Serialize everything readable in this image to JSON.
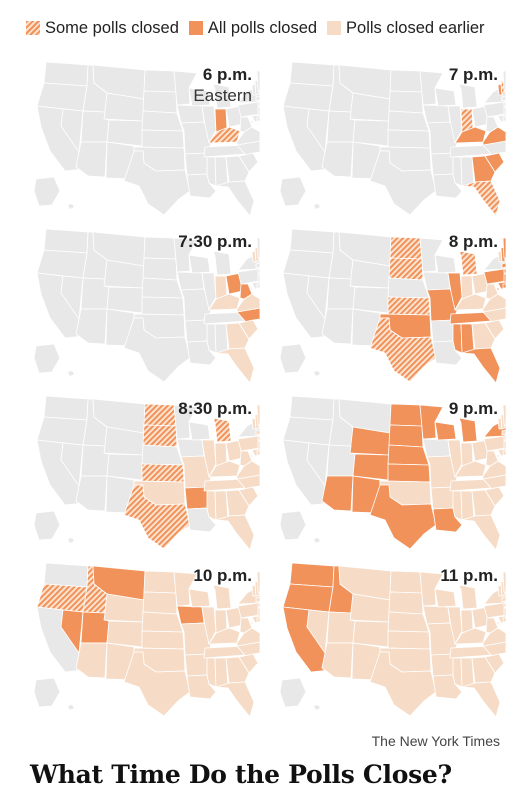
{
  "legend": {
    "some_polls_closed": "Some polls closed",
    "all_polls_closed": "All polls closed",
    "polls_closed_earlier": "Polls closed earlier"
  },
  "colors": {
    "all_polls_closed": "#f1925a",
    "some_polls_closed_hatch": "#f1925a",
    "polls_closed_earlier": "#f6dcc6",
    "open": "#e8e8e8",
    "border": "#ffffff"
  },
  "panels": [
    {
      "time": "6 p.m.",
      "subtitle": "Eastern",
      "all": [
        "IN"
      ],
      "some": [
        "IN",
        "KY"
      ],
      "earlier": []
    },
    {
      "time": "7 p.m.",
      "subtitle": "",
      "all": [
        "KY",
        "VA",
        "GA",
        "SC",
        "VT"
      ],
      "some": [
        "FL",
        "NH",
        "IN"
      ],
      "earlier": [
        "IN"
      ]
    },
    {
      "time": "7:30 p.m.",
      "subtitle": "",
      "all": [
        "OH",
        "WV",
        "NC"
      ],
      "some": [],
      "earlier": [
        "IN",
        "KY",
        "VA",
        "GA",
        "SC",
        "VT",
        "FL",
        "NH"
      ]
    },
    {
      "time": "8 p.m.",
      "subtitle": "",
      "all": [
        "IL",
        "MS",
        "AL",
        "TN",
        "FL",
        "MO",
        "ME",
        "MA",
        "CT",
        "RI",
        "NJ",
        "DE",
        "MD",
        "DC",
        "PA",
        "NH",
        "OK"
      ],
      "some": [
        "ND",
        "SD",
        "KS",
        "TX",
        "MI"
      ],
      "earlier": [
        "IN",
        "KY",
        "VA",
        "GA",
        "SC",
        "VT",
        "OH",
        "WV",
        "NC"
      ]
    },
    {
      "time": "8:30 p.m.",
      "subtitle": "",
      "all": [
        "AR"
      ],
      "some": [
        "ND",
        "SD",
        "KS",
        "TX",
        "MI"
      ],
      "earlier": [
        "IL",
        "MS",
        "AL",
        "TN",
        "FL",
        "MO",
        "ME",
        "MA",
        "CT",
        "RI",
        "NJ",
        "DE",
        "MD",
        "DC",
        "PA",
        "NH",
        "OK",
        "IN",
        "KY",
        "VA",
        "GA",
        "SC",
        "VT",
        "OH",
        "WV",
        "NC"
      ]
    },
    {
      "time": "9 p.m.",
      "subtitle": "",
      "all": [
        "AZ",
        "CO",
        "NM",
        "WY",
        "NE",
        "MN",
        "WI",
        "LA",
        "NY",
        "ND",
        "SD",
        "KS",
        "TX",
        "MI"
      ],
      "some": [],
      "earlier": [
        "AR",
        "IL",
        "MS",
        "AL",
        "TN",
        "FL",
        "MO",
        "ME",
        "MA",
        "CT",
        "RI",
        "NJ",
        "DE",
        "MD",
        "DC",
        "PA",
        "NH",
        "OK",
        "IN",
        "KY",
        "VA",
        "GA",
        "SC",
        "VT",
        "OH",
        "WV",
        "NC"
      ]
    },
    {
      "time": "10 p.m.",
      "subtitle": "",
      "all": [
        "NV",
        "UT",
        "MT",
        "IA"
      ],
      "some": [
        "OR",
        "ID"
      ],
      "earlier": [
        "AZ",
        "CO",
        "NM",
        "WY",
        "NE",
        "MN",
        "WI",
        "LA",
        "NY",
        "ND",
        "SD",
        "KS",
        "TX",
        "MI",
        "AR",
        "IL",
        "MS",
        "AL",
        "TN",
        "FL",
        "MO",
        "ME",
        "MA",
        "CT",
        "RI",
        "NJ",
        "DE",
        "MD",
        "DC",
        "PA",
        "NH",
        "OK",
        "IN",
        "KY",
        "VA",
        "GA",
        "SC",
        "VT",
        "OH",
        "WV",
        "NC"
      ]
    },
    {
      "time": "11 p.m.",
      "subtitle": "",
      "all": [
        "CA",
        "WA",
        "OR",
        "ID"
      ],
      "some": [],
      "earlier": [
        "NV",
        "UT",
        "MT",
        "IA",
        "AZ",
        "CO",
        "NM",
        "WY",
        "NE",
        "MN",
        "WI",
        "LA",
        "NY",
        "ND",
        "SD",
        "KS",
        "TX",
        "MI",
        "AR",
        "IL",
        "MS",
        "AL",
        "TN",
        "FL",
        "MO",
        "ME",
        "MA",
        "CT",
        "RI",
        "NJ",
        "DE",
        "MD",
        "DC",
        "PA",
        "NH",
        "OK",
        "IN",
        "KY",
        "VA",
        "GA",
        "SC",
        "VT",
        "OH",
        "WV",
        "NC"
      ]
    }
  ],
  "credit": "The New York Times",
  "headline": "What Time Do the Polls Close?"
}
